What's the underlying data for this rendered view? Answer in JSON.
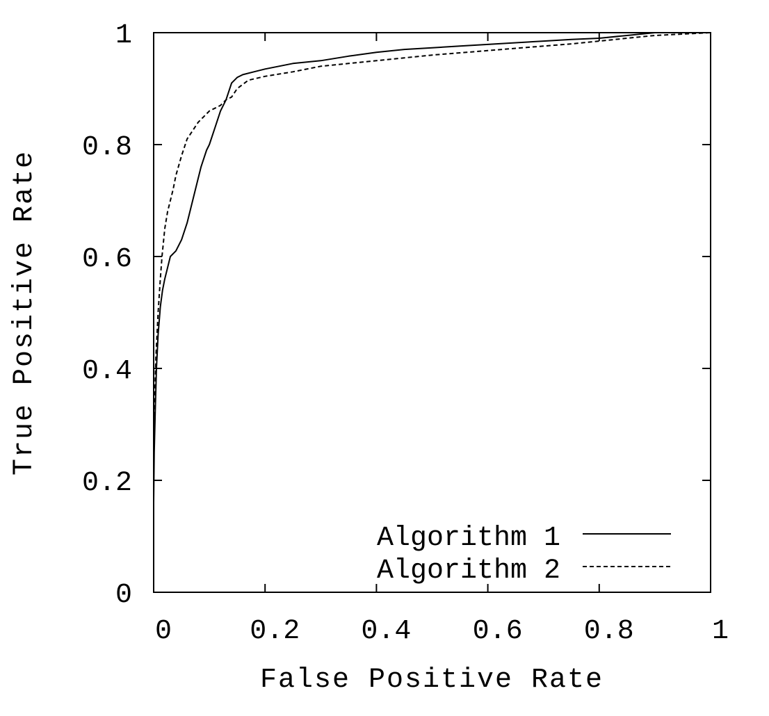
{
  "chart_data": {
    "type": "line",
    "title": "",
    "xlabel": "False Positive Rate",
    "ylabel": "True Positive Rate",
    "xlim": [
      0,
      1
    ],
    "ylim": [
      0,
      1
    ],
    "x_ticks": [
      0,
      0.2,
      0.4,
      0.6,
      0.8,
      1
    ],
    "y_ticks": [
      0,
      0.2,
      0.4,
      0.6,
      0.8,
      1
    ],
    "x_tick_labels": [
      "0",
      "0.2",
      "0.4",
      "0.6",
      "0.8",
      "1"
    ],
    "y_tick_labels": [
      "0",
      "0.2",
      "0.4",
      "0.6",
      "0.8",
      "1"
    ],
    "grid": false,
    "legend_position": "bottom-right",
    "series": [
      {
        "name": "Algorithm 1",
        "line_style": "solid",
        "color": "#000000",
        "x": [
          0,
          0.001,
          0.003,
          0.005,
          0.008,
          0.012,
          0.016,
          0.02,
          0.025,
          0.03,
          0.04,
          0.05,
          0.055,
          0.06,
          0.065,
          0.07,
          0.075,
          0.08,
          0.085,
          0.09,
          0.095,
          0.1,
          0.11,
          0.12,
          0.13,
          0.14,
          0.15,
          0.16,
          0.18,
          0.2,
          0.25,
          0.3,
          0.35,
          0.4,
          0.45,
          0.5,
          0.55,
          0.6,
          0.65,
          0.7,
          0.75,
          0.8,
          0.85,
          0.9,
          1.0
        ],
        "y": [
          0.16,
          0.25,
          0.33,
          0.4,
          0.46,
          0.51,
          0.54,
          0.56,
          0.58,
          0.6,
          0.61,
          0.63,
          0.645,
          0.66,
          0.68,
          0.7,
          0.72,
          0.74,
          0.76,
          0.775,
          0.79,
          0.8,
          0.83,
          0.86,
          0.88,
          0.91,
          0.92,
          0.925,
          0.93,
          0.935,
          0.945,
          0.95,
          0.958,
          0.965,
          0.97,
          0.973,
          0.976,
          0.979,
          0.982,
          0.985,
          0.988,
          0.99,
          0.995,
          1.0,
          1.0
        ]
      },
      {
        "name": "Algorithm 2",
        "line_style": "dashed",
        "color": "#000000",
        "x": [
          0,
          0.002,
          0.004,
          0.006,
          0.008,
          0.01,
          0.012,
          0.015,
          0.018,
          0.02,
          0.025,
          0.03,
          0.035,
          0.04,
          0.05,
          0.06,
          0.07,
          0.08,
          0.09,
          0.1,
          0.11,
          0.12,
          0.13,
          0.14,
          0.15,
          0.17,
          0.2,
          0.25,
          0.3,
          0.35,
          0.4,
          0.45,
          0.5,
          0.55,
          0.6,
          0.65,
          0.7,
          0.75,
          0.8,
          0.85,
          0.9,
          1.0
        ],
        "y": [
          0.24,
          0.35,
          0.42,
          0.46,
          0.5,
          0.53,
          0.56,
          0.6,
          0.63,
          0.65,
          0.68,
          0.7,
          0.72,
          0.745,
          0.78,
          0.81,
          0.825,
          0.84,
          0.85,
          0.86,
          0.865,
          0.87,
          0.88,
          0.885,
          0.9,
          0.915,
          0.922,
          0.93,
          0.94,
          0.945,
          0.95,
          0.955,
          0.96,
          0.964,
          0.968,
          0.972,
          0.976,
          0.98,
          0.985,
          0.99,
          0.995,
          1.0
        ]
      }
    ]
  }
}
